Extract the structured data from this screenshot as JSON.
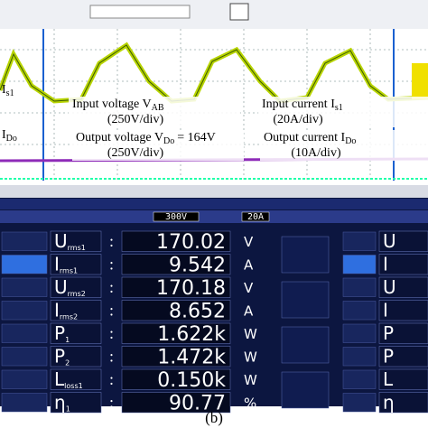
{
  "scope": {
    "left_labels": [
      {
        "text": "I",
        "sub": "s1"
      },
      {
        "text": "I",
        "sub": "Do"
      }
    ],
    "annotations": [
      {
        "line1": "Input voltage V",
        "sub": "AB",
        "line2": "(250V/div)"
      },
      {
        "line1": "Input current I",
        "sub": "s1",
        "line2": "(20A/div)"
      },
      {
        "line1": "Output voltage V",
        "sub": "Do",
        "tail": "= 164V",
        "line2": "(250V/div)"
      },
      {
        "line1": "Output current I",
        "sub": "Do",
        "line2": "(10A/div)"
      }
    ]
  },
  "analyzer": {
    "header": {
      "range_u": "300V",
      "range_i": "20A"
    },
    "rows": [
      {
        "symbol": "U",
        "sub": "rms1",
        "value": "170.02",
        "unit": "V"
      },
      {
        "symbol": "I",
        "sub": "rms1",
        "value": "9.542",
        "unit": "A"
      },
      {
        "symbol": "U",
        "sub": "rms2",
        "value": "170.18",
        "unit": "V"
      },
      {
        "symbol": "I",
        "sub": "rms2",
        "value": "8.652",
        "unit": "A"
      },
      {
        "symbol": "P",
        "sub": "1",
        "value": "1.622k",
        "unit": "W"
      },
      {
        "symbol": "P",
        "sub": "2",
        "value": "1.472k",
        "unit": "W"
      },
      {
        "symbol": "L",
        "sub": "loss1",
        "value": "0.150k",
        "unit": "W"
      },
      {
        "symbol": "η",
        "sub": "1",
        "value": "90.77",
        "unit": "%"
      }
    ]
  },
  "caption": "(b)"
}
